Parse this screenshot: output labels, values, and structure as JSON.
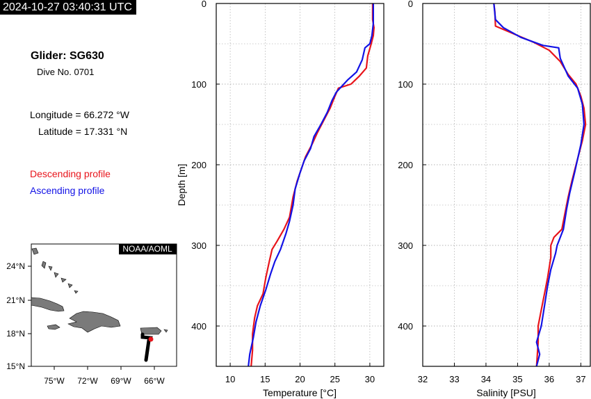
{
  "header": {
    "timestamp": "2024-10-27 03:40:31 UTC",
    "glider": "Glider: SG630",
    "dive": "Dive No. 0701",
    "longitude": "Longitude = 66.272 °W",
    "latitude": "Latitude = 17.331 °N"
  },
  "legend": {
    "descending": "Descending profile",
    "ascending": "Ascending profile",
    "descending_color": "#e8141b",
    "ascending_color": "#1212e6"
  },
  "map": {
    "credit": "NOAA/AOML",
    "lat_labels": [
      "24°N",
      "21°N",
      "18°N",
      "15°N"
    ],
    "lon_labels": [
      "75°W",
      "72°W",
      "69°W",
      "66°W"
    ],
    "land_color": "#7a7a7a",
    "track_color": "#000000",
    "position_color": "#e8141b"
  },
  "chart_data": [
    {
      "type": "line",
      "xlabel": "Temperature [°C]",
      "ylabel": "Depth [m]",
      "xlim": [
        8,
        32
      ],
      "ylim": [
        450,
        0
      ],
      "xticks": [
        "10",
        "15",
        "20",
        "25",
        "30"
      ],
      "yticks": [
        "0",
        "100",
        "200",
        "300",
        "400"
      ],
      "grid": true,
      "series": [
        {
          "name": "Descending profile",
          "color": "#e8141b",
          "points": [
            [
              30.4,
              0
            ],
            [
              30.4,
              20
            ],
            [
              30.6,
              30
            ],
            [
              30.5,
              40
            ],
            [
              30.2,
              50
            ],
            [
              29.7,
              65
            ],
            [
              29.5,
              80
            ],
            [
              28.5,
              90
            ],
            [
              27.3,
              100
            ],
            [
              25.5,
              105
            ],
            [
              25.0,
              115
            ],
            [
              24.3,
              130
            ],
            [
              23.4,
              145
            ],
            [
              22.5,
              160
            ],
            [
              21.7,
              175
            ],
            [
              20.8,
              190
            ],
            [
              20.2,
              205
            ],
            [
              19.6,
              220
            ],
            [
              19.0,
              240
            ],
            [
              18.5,
              265
            ],
            [
              17.7,
              280
            ],
            [
              16.7,
              295
            ],
            [
              16.0,
              305
            ],
            [
              15.6,
              320
            ],
            [
              15.1,
              340
            ],
            [
              14.7,
              360
            ],
            [
              13.9,
              375
            ],
            [
              13.5,
              390
            ],
            [
              13.2,
              410
            ],
            [
              13.2,
              430
            ],
            [
              13.0,
              450
            ]
          ]
        },
        {
          "name": "Ascending profile",
          "color": "#1212e6",
          "points": [
            [
              30.5,
              0
            ],
            [
              30.5,
              25
            ],
            [
              30.3,
              40
            ],
            [
              30.0,
              50
            ],
            [
              29.3,
              55
            ],
            [
              28.9,
              70
            ],
            [
              28.1,
              85
            ],
            [
              26.8,
              95
            ],
            [
              25.2,
              110
            ],
            [
              24.6,
              120
            ],
            [
              23.9,
              135
            ],
            [
              23.0,
              150
            ],
            [
              22.0,
              165
            ],
            [
              21.5,
              180
            ],
            [
              20.6,
              195
            ],
            [
              20.0,
              210
            ],
            [
              19.3,
              230
            ],
            [
              19.0,
              250
            ],
            [
              18.5,
              270
            ],
            [
              18.0,
              285
            ],
            [
              17.2,
              305
            ],
            [
              16.4,
              320
            ],
            [
              15.8,
              335
            ],
            [
              15.1,
              355
            ],
            [
              14.3,
              375
            ],
            [
              13.7,
              395
            ],
            [
              13.3,
              415
            ],
            [
              12.8,
              435
            ],
            [
              12.6,
              450
            ]
          ]
        }
      ]
    },
    {
      "type": "line",
      "xlabel": "Salinity [PSU]",
      "ylabel": "",
      "xlim": [
        32,
        37.3
      ],
      "ylim": [
        450,
        0
      ],
      "xticks": [
        "32",
        "33",
        "34",
        "35",
        "36",
        "37"
      ],
      "yticks": [
        "0",
        "100",
        "200",
        "300",
        "400"
      ],
      "grid": true,
      "series": [
        {
          "name": "Descending profile",
          "color": "#e8141b",
          "points": [
            [
              34.25,
              0
            ],
            [
              34.28,
              10
            ],
            [
              34.3,
              28
            ],
            [
              34.9,
              38
            ],
            [
              35.5,
              48
            ],
            [
              36.0,
              58
            ],
            [
              36.35,
              72
            ],
            [
              36.6,
              88
            ],
            [
              36.85,
              100
            ],
            [
              37.0,
              115
            ],
            [
              37.1,
              130
            ],
            [
              37.15,
              150
            ],
            [
              37.05,
              170
            ],
            [
              36.95,
              185
            ],
            [
              36.85,
              200
            ],
            [
              36.72,
              220
            ],
            [
              36.6,
              240
            ],
            [
              36.5,
              260
            ],
            [
              36.4,
              280
            ],
            [
              36.15,
              290
            ],
            [
              36.05,
              300
            ],
            [
              36.05,
              315
            ],
            [
              35.95,
              340
            ],
            [
              35.85,
              360
            ],
            [
              35.75,
              380
            ],
            [
              35.65,
              400
            ],
            [
              35.65,
              420
            ],
            [
              35.6,
              450
            ]
          ]
        },
        {
          "name": "Ascending profile",
          "color": "#1212e6",
          "points": [
            [
              34.25,
              0
            ],
            [
              34.3,
              20
            ],
            [
              34.55,
              30
            ],
            [
              35.1,
              42
            ],
            [
              35.8,
              52
            ],
            [
              36.3,
              55
            ],
            [
              36.35,
              68
            ],
            [
              36.6,
              90
            ],
            [
              36.9,
              105
            ],
            [
              37.05,
              125
            ],
            [
              37.1,
              150
            ],
            [
              37.0,
              175
            ],
            [
              36.8,
              210
            ],
            [
              36.65,
              235
            ],
            [
              36.55,
              255
            ],
            [
              36.45,
              280
            ],
            [
              36.25,
              300
            ],
            [
              36.2,
              310
            ],
            [
              36.05,
              330
            ],
            [
              35.95,
              350
            ],
            [
              35.85,
              375
            ],
            [
              35.75,
              400
            ],
            [
              35.6,
              420
            ],
            [
              35.7,
              435
            ],
            [
              35.6,
              450
            ]
          ]
        }
      ]
    }
  ]
}
